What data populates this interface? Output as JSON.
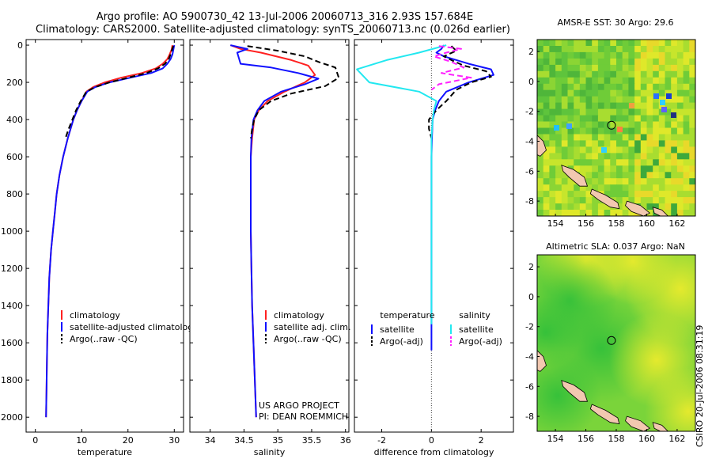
{
  "header": {
    "line1": "Argo profile: AO 5900730_42 13-Jul-2006 20060713_316 2.93S 157.684E",
    "line2": "Climatology: CARS2000. Satellite-adjusted climatology: synTS_20060713.nc (0.026d earlier)"
  },
  "footer": {
    "project": "US ARGO PROJECT",
    "pi": "PI: DEAN ROEMMICH",
    "stamp": "CSIRO 20-Jul-2006 08:31:19"
  },
  "colors": {
    "clim": "#ff2020",
    "sat": "#1010ff",
    "argo": "#000000",
    "sal_sat": "#22e8f0",
    "sal_argo": "#ff20ff"
  },
  "chart_data": [
    {
      "type": "line",
      "id": "temperature",
      "xlabel": "temperature",
      "xlim": [
        -2,
        32
      ],
      "ylim": [
        2080,
        -30
      ],
      "xticks": [
        0,
        10,
        20,
        30
      ],
      "yticks": [
        0,
        200,
        400,
        600,
        800,
        1000,
        1200,
        1400,
        1600,
        1800,
        2000
      ],
      "legend": [
        "climatology",
        "satellite-adjusted climatology",
        "Argo(..raw -QC)"
      ],
      "series": [
        {
          "name": "climatology",
          "color": "#ff2020",
          "dash": false,
          "x": [
            29.6,
            29.4,
            29.0,
            28.5,
            27.5,
            26.0,
            23.0,
            18.5,
            15.0,
            12.5,
            11.0,
            10.0,
            9.0,
            8.2,
            7.0,
            6.0,
            5.2,
            4.6,
            4.2,
            3.8,
            3.4,
            3.0,
            2.8,
            2.6,
            2.5,
            2.4,
            2.3
          ],
          "y": [
            0,
            25,
            50,
            75,
            100,
            125,
            150,
            175,
            200,
            225,
            250,
            300,
            350,
            400,
            500,
            600,
            700,
            800,
            900,
            1000,
            1100,
            1250,
            1400,
            1550,
            1700,
            1850,
            2000
          ]
        },
        {
          "name": "satellite-adjusted climatology",
          "color": "#1010ff",
          "dash": false,
          "x": [
            30.0,
            29.8,
            29.6,
            29.2,
            28.5,
            27.5,
            25.0,
            20.5,
            16.0,
            13.0,
            11.2,
            10.0,
            9.0,
            8.2,
            7.0,
            6.0,
            5.2,
            4.6,
            4.2,
            3.8,
            3.4,
            3.0,
            2.8,
            2.6,
            2.5,
            2.4,
            2.3
          ],
          "y": [
            0,
            25,
            50,
            75,
            100,
            125,
            150,
            175,
            200,
            225,
            250,
            300,
            350,
            400,
            500,
            600,
            700,
            800,
            900,
            1000,
            1100,
            1250,
            1400,
            1550,
            1700,
            1850,
            2000
          ]
        },
        {
          "name": "Argo(..raw -QC)",
          "color": "#000000",
          "dash": true,
          "x": [
            29.8,
            29.5,
            29.2,
            28.8,
            28.0,
            26.5,
            24.0,
            20.0,
            16.0,
            13.0,
            11.0,
            9.8,
            8.8,
            8.0,
            7.2,
            6.5
          ],
          "y": [
            5,
            25,
            50,
            75,
            100,
            125,
            150,
            175,
            200,
            225,
            250,
            300,
            350,
            400,
            450,
            500
          ]
        }
      ]
    },
    {
      "type": "line",
      "id": "salinity",
      "xlabel": "salinity",
      "xlim": [
        33.7,
        36.05
      ],
      "ylim": [
        2080,
        -30
      ],
      "xticks": [
        34,
        34.5,
        35,
        35.5,
        36
      ],
      "legend": [
        "climatology",
        "satellite adj. clim.",
        "Argo(..raw -QC)"
      ],
      "series": [
        {
          "name": "climatology",
          "color": "#ff2020",
          "dash": false,
          "x": [
            34.3,
            34.45,
            34.75,
            35.2,
            35.45,
            35.55,
            35.4,
            35.1,
            34.85,
            34.72,
            34.65,
            34.62,
            34.6,
            34.6,
            34.6,
            34.6,
            34.61,
            34.62,
            34.64,
            34.66,
            34.68
          ],
          "y": [
            0,
            20,
            40,
            80,
            110,
            160,
            200,
            250,
            300,
            350,
            400,
            500,
            600,
            700,
            800,
            1000,
            1200,
            1400,
            1600,
            1800,
            2000
          ]
        },
        {
          "name": "satellite adj. clim.",
          "color": "#1010ff",
          "dash": false,
          "x": [
            34.3,
            34.55,
            34.4,
            34.45,
            34.9,
            35.3,
            35.6,
            35.4,
            35.05,
            34.8,
            34.7,
            34.64,
            34.61,
            34.6,
            34.6,
            34.6,
            34.61,
            34.62,
            34.64,
            34.66,
            34.68
          ],
          "y": [
            0,
            20,
            40,
            100,
            120,
            150,
            180,
            210,
            250,
            300,
            350,
            400,
            500,
            600,
            700,
            1000,
            1200,
            1400,
            1600,
            1800,
            2000
          ]
        },
        {
          "name": "Argo(..raw -QC)",
          "color": "#000000",
          "dash": true,
          "x": [
            34.55,
            35.0,
            35.4,
            35.6,
            35.85,
            35.9,
            35.7,
            35.2,
            34.9,
            34.72,
            34.65,
            34.62,
            34.6
          ],
          "y": [
            5,
            30,
            60,
            90,
            120,
            175,
            220,
            260,
            300,
            350,
            400,
            450,
            500
          ]
        }
      ]
    },
    {
      "type": "line",
      "id": "difference",
      "xlabel": "difference from climatology",
      "xlim": [
        -3.1,
        3.3
      ],
      "ylim": [
        2080,
        -30
      ],
      "xticks": [
        -2,
        0,
        2
      ],
      "legend_headers": [
        "temperature",
        "salinity"
      ],
      "legend": [
        "satellite",
        "Argo(-adj)",
        "satellite",
        "Argo(-adj)"
      ],
      "series": [
        {
          "name": "temperature satellite",
          "color": "#1010ff",
          "dash": false,
          "x": [
            0.5,
            0.4,
            0.2,
            0.5,
            1.5,
            2.4,
            2.5,
            1.5,
            0.6,
            0.3,
            0.15,
            0.05,
            0.02,
            0.0,
            0.0,
            0.0,
            0.0,
            0.0,
            0.0,
            0.0
          ],
          "y": [
            0,
            20,
            40,
            60,
            100,
            130,
            160,
            200,
            250,
            300,
            350,
            400,
            500,
            600,
            800,
            1000,
            1200,
            1400,
            1600,
            1640
          ]
        },
        {
          "name": "temperature Argo(-adj)",
          "color": "#000000",
          "dash": true,
          "x": [
            0.8,
            1.0,
            0.5,
            0.8,
            1.3,
            2.2,
            2.4,
            1.6,
            1.0,
            0.6,
            0.2,
            -0.1,
            -0.1,
            0.0
          ],
          "y": [
            5,
            30,
            60,
            80,
            110,
            140,
            170,
            200,
            240,
            300,
            350,
            400,
            450,
            500
          ]
        },
        {
          "name": "salinity satellite",
          "color": "#22e8f0",
          "dash": false,
          "x": [
            0.6,
            -0.5,
            -1.8,
            -3.0,
            -2.5,
            -0.5,
            0.2,
            0.1,
            0.05,
            0.0,
            0.0,
            0.0,
            0.0,
            0.0,
            0.0,
            0.0
          ],
          "y": [
            0,
            40,
            80,
            130,
            200,
            250,
            300,
            350,
            400,
            500,
            600,
            800,
            1000,
            1200,
            1400,
            1500
          ]
        },
        {
          "name": "salinity Argo(-adj)",
          "color": "#ff20ff",
          "dash": true,
          "x": [
            0.3,
            1.2,
            0.6,
            0.1,
            0.8,
            1.3,
            0.4,
            1.6,
            0.3,
            0.0
          ],
          "y": [
            5,
            20,
            40,
            60,
            90,
            120,
            150,
            175,
            210,
            240
          ]
        }
      ]
    },
    {
      "type": "heatmap",
      "id": "sst-map",
      "title": "AMSR-E SST: 30 Argo: 29.6",
      "xlim": [
        152.8,
        163.2
      ],
      "ylim": [
        -9.0,
        2.8
      ],
      "xticks": [
        154,
        156,
        158,
        160,
        162
      ],
      "yticks": [
        2,
        0,
        -2,
        -4,
        -6,
        -8
      ],
      "marker": {
        "lon": 157.684,
        "lat": -2.93
      }
    },
    {
      "type": "heatmap",
      "id": "sla-map",
      "title": "Altimetric SLA: 0.037 Argo: NaN",
      "xlim": [
        152.8,
        163.2
      ],
      "ylim": [
        -9.0,
        2.8
      ],
      "xticks": [
        154,
        156,
        158,
        160,
        162
      ],
      "yticks": [
        2,
        0,
        -2,
        -4,
        -6,
        -8
      ],
      "marker": {
        "lon": 157.684,
        "lat": -2.93
      }
    }
  ]
}
